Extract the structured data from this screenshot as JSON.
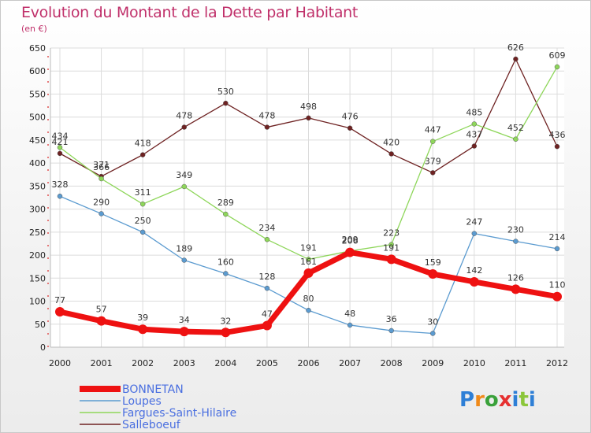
{
  "header": {
    "title": "Evolution du Montant de la Dette par Habitant",
    "subtitle": "(en €)"
  },
  "logo": {
    "text": "Proxiti"
  },
  "chart_data": {
    "type": "line",
    "title": "Evolution du Montant de la Dette par Habitant",
    "subtitle": "(en €)",
    "xlabel": "",
    "ylabel": "",
    "x": [
      "2000",
      "2001",
      "2002",
      "2003",
      "2004",
      "2005",
      "2006",
      "2007",
      "2008",
      "2009",
      "2010",
      "2011",
      "2012"
    ],
    "ylim": [
      0,
      650
    ],
    "yticks": [
      0,
      50,
      100,
      150,
      200,
      250,
      300,
      350,
      400,
      450,
      500,
      550,
      600,
      650
    ],
    "grid": true,
    "legend_position": "bottom-left",
    "series": [
      {
        "name": "Salleboeuf",
        "color": "#6e2222",
        "values": [
          421,
          371,
          418,
          478,
          530,
          478,
          498,
          476,
          420,
          379,
          437,
          626,
          436
        ]
      },
      {
        "name": "Fargues-Saint-Hilaire",
        "color": "#8ed65a",
        "values": [
          434,
          366,
          311,
          349,
          289,
          234,
          191,
          209,
          223,
          447,
          485,
          452,
          609
        ]
      },
      {
        "name": "Loupes",
        "color": "#5b9bd0",
        "values": [
          328,
          290,
          250,
          189,
          160,
          128,
          80,
          48,
          36,
          30,
          247,
          230,
          214
        ]
      },
      {
        "name": "BONNETAN",
        "color": "#ee1111",
        "values": [
          77,
          57,
          39,
          34,
          32,
          47,
          161,
          206,
          191,
          159,
          142,
          126,
          110
        ]
      }
    ]
  }
}
